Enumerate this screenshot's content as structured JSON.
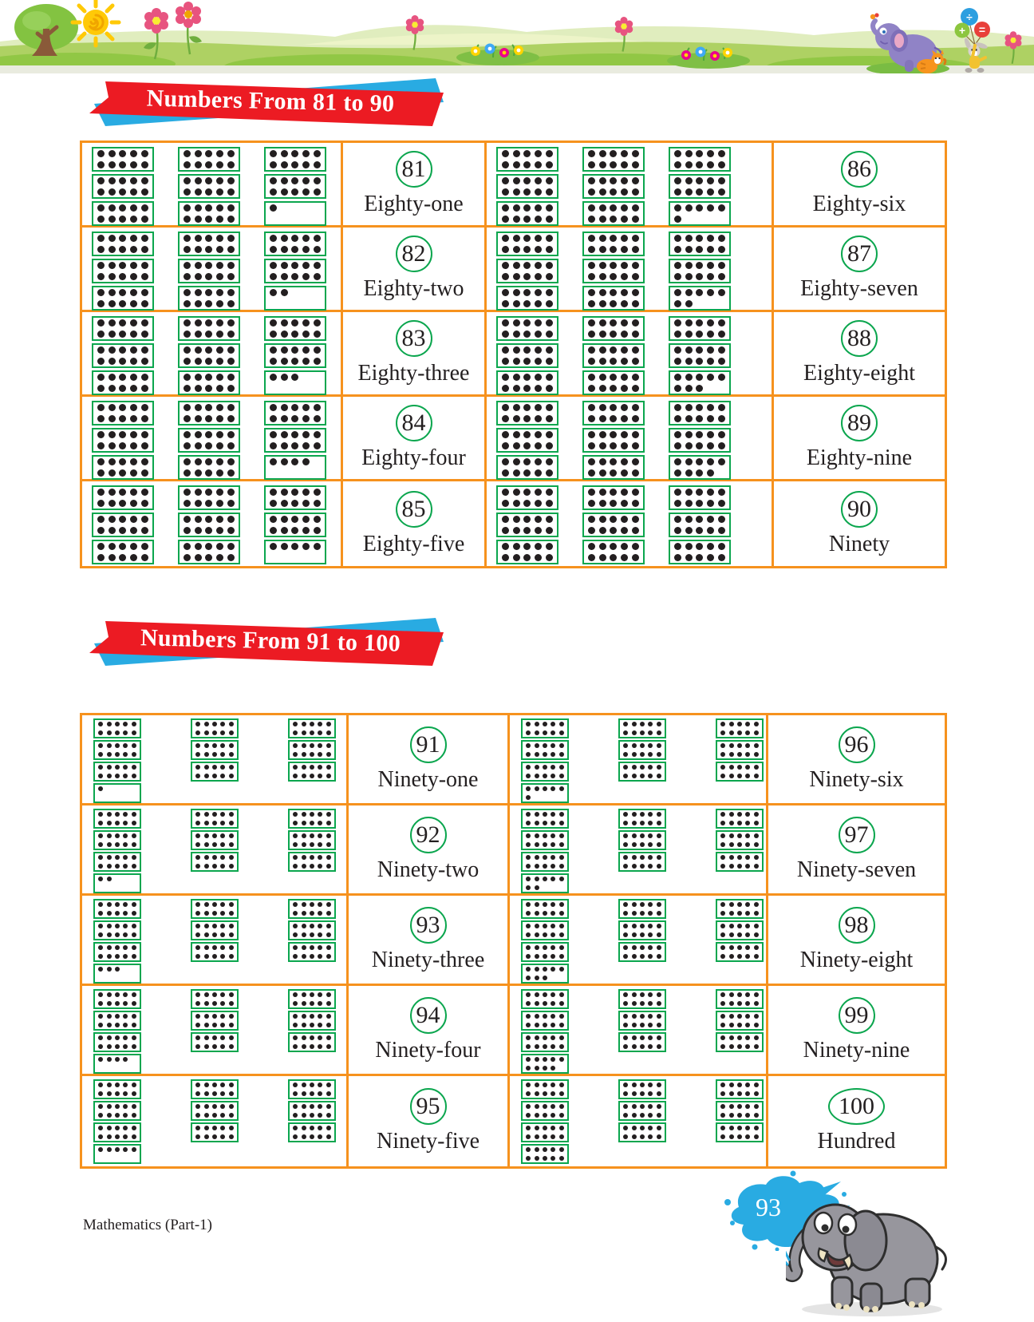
{
  "banners": {
    "section1": "Numbers From 81 to 90",
    "section2": "Numbers From 91 to 100"
  },
  "header": {
    "scene": "grass landscape with tree, sun, flowers, purple elephant, bunny with balloons and cat",
    "balloon_symbols": [
      "÷",
      "+",
      "="
    ]
  },
  "tables": {
    "t81_90": {
      "rows": [
        {
          "left": {
            "number": "81",
            "word": "Eighty-one",
            "frame_columns": [
              [
                10,
                10,
                10
              ],
              [
                10,
                10,
                10
              ],
              [
                10,
                10,
                1
              ]
            ]
          },
          "right": {
            "number": "86",
            "word": "Eighty-six",
            "frame_columns": [
              [
                10,
                10,
                10
              ],
              [
                10,
                10,
                10
              ],
              [
                10,
                10,
                6
              ]
            ]
          }
        },
        {
          "left": {
            "number": "82",
            "word": "Eighty-two",
            "frame_columns": [
              [
                10,
                10,
                10
              ],
              [
                10,
                10,
                10
              ],
              [
                10,
                10,
                2
              ]
            ]
          },
          "right": {
            "number": "87",
            "word": "Eighty-seven",
            "frame_columns": [
              [
                10,
                10,
                10
              ],
              [
                10,
                10,
                10
              ],
              [
                10,
                10,
                7
              ]
            ]
          }
        },
        {
          "left": {
            "number": "83",
            "word": "Eighty-three",
            "frame_columns": [
              [
                10,
                10,
                10
              ],
              [
                10,
                10,
                10
              ],
              [
                10,
                10,
                3
              ]
            ]
          },
          "right": {
            "number": "88",
            "word": "Eighty-eight",
            "frame_columns": [
              [
                10,
                10,
                10
              ],
              [
                10,
                10,
                10
              ],
              [
                10,
                10,
                8
              ]
            ]
          }
        },
        {
          "left": {
            "number": "84",
            "word": "Eighty-four",
            "frame_columns": [
              [
                10,
                10,
                10
              ],
              [
                10,
                10,
                10
              ],
              [
                10,
                10,
                4
              ]
            ]
          },
          "right": {
            "number": "89",
            "word": "Eighty-nine",
            "frame_columns": [
              [
                10,
                10,
                10
              ],
              [
                10,
                10,
                10
              ],
              [
                10,
                10,
                9
              ]
            ]
          }
        },
        {
          "left": {
            "number": "85",
            "word": "Eighty-five",
            "frame_columns": [
              [
                10,
                10,
                10
              ],
              [
                10,
                10,
                10
              ],
              [
                10,
                10,
                5
              ]
            ]
          },
          "right": {
            "number": "90",
            "word": "Ninety",
            "frame_columns": [
              [
                10,
                10,
                10
              ],
              [
                10,
                10,
                10
              ],
              [
                10,
                10,
                10
              ]
            ]
          }
        }
      ]
    },
    "t91_100": {
      "rows": [
        {
          "left": {
            "number": "91",
            "word": "Ninety-one",
            "frame_columns": [
              [
                10,
                10,
                10,
                1
              ],
              [
                10,
                10,
                10
              ],
              [
                10,
                10,
                10
              ]
            ]
          },
          "right": {
            "number": "96",
            "word": "Ninety-six",
            "frame_columns": [
              [
                10,
                10,
                10,
                6
              ],
              [
                10,
                10,
                10
              ],
              [
                10,
                10,
                10
              ]
            ]
          }
        },
        {
          "left": {
            "number": "92",
            "word": "Ninety-two",
            "frame_columns": [
              [
                10,
                10,
                10,
                2
              ],
              [
                10,
                10,
                10
              ],
              [
                10,
                10,
                10
              ]
            ]
          },
          "right": {
            "number": "97",
            "word": "Ninety-seven",
            "frame_columns": [
              [
                10,
                10,
                10,
                7
              ],
              [
                10,
                10,
                10
              ],
              [
                10,
                10,
                10
              ]
            ]
          }
        },
        {
          "left": {
            "number": "93",
            "word": "Ninety-three",
            "frame_columns": [
              [
                10,
                10,
                10,
                3
              ],
              [
                10,
                10,
                10
              ],
              [
                10,
                10,
                10
              ]
            ]
          },
          "right": {
            "number": "98",
            "word": "Ninety-eight",
            "frame_columns": [
              [
                10,
                10,
                10,
                8
              ],
              [
                10,
                10,
                10
              ],
              [
                10,
                10,
                10
              ]
            ]
          }
        },
        {
          "left": {
            "number": "94",
            "word": "Ninety-four",
            "frame_columns": [
              [
                10,
                10,
                10,
                4
              ],
              [
                10,
                10,
                10
              ],
              [
                10,
                10,
                10
              ]
            ]
          },
          "right": {
            "number": "99",
            "word": "Ninety-nine",
            "frame_columns": [
              [
                10,
                10,
                10,
                9
              ],
              [
                10,
                10,
                10
              ],
              [
                10,
                10,
                10
              ]
            ]
          }
        },
        {
          "left": {
            "number": "95",
            "word": "Ninety-five",
            "frame_columns": [
              [
                10,
                10,
                10,
                5
              ],
              [
                10,
                10,
                10
              ],
              [
                10,
                10,
                10
              ]
            ]
          },
          "right": {
            "number": "100",
            "word": "Hundred",
            "frame_columns": [
              [
                10,
                10,
                10,
                10
              ],
              [
                10,
                10,
                10
              ],
              [
                10,
                10,
                10
              ]
            ]
          }
        }
      ]
    }
  },
  "footer": {
    "book_label": "Mathematics (Part-1)",
    "page_number": "93"
  },
  "colors": {
    "table_border_orange": "#F6921E",
    "frame_green": "#0BA64E",
    "dot_black": "#231F20",
    "ribbon_red": "#EC1B23",
    "ribbon_blue": "#29ABE2",
    "splash_blue": "#29ABE2",
    "text_black": "#231F20"
  }
}
